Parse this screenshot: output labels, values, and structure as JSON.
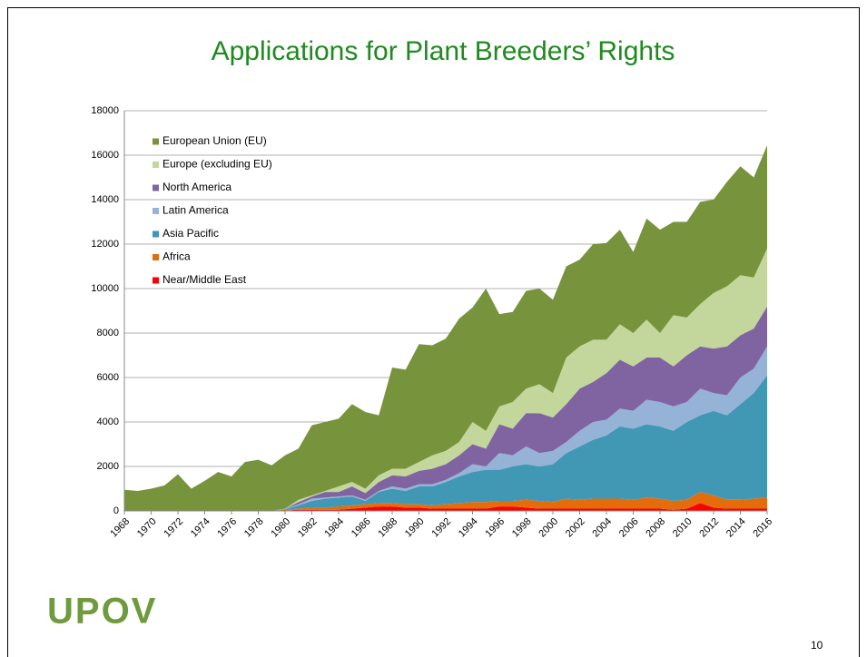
{
  "chart_data": {
    "type": "stacked_area",
    "title": "Applications for Plant Breeders’ Rights",
    "x": [
      1968,
      1969,
      1970,
      1971,
      1972,
      1973,
      1974,
      1975,
      1976,
      1977,
      1978,
      1979,
      1980,
      1981,
      1982,
      1983,
      1984,
      1985,
      1986,
      1987,
      1988,
      1989,
      1990,
      1991,
      1992,
      1993,
      1994,
      1995,
      1996,
      1997,
      1998,
      1999,
      2000,
      2001,
      2002,
      2003,
      2004,
      2005,
      2006,
      2007,
      2008,
      2009,
      2010,
      2011,
      2012,
      2013,
      2014,
      2015,
      2016
    ],
    "xlim": [
      1968,
      2016
    ],
    "xticks": [
      1968,
      1970,
      1972,
      1974,
      1976,
      1978,
      1980,
      1982,
      1984,
      1986,
      1988,
      1990,
      1992,
      1994,
      1996,
      1998,
      2000,
      2002,
      2004,
      2006,
      2008,
      2010,
      2012,
      2014,
      2016
    ],
    "ylim": [
      0,
      18000
    ],
    "yticks": [
      0,
      2000,
      4000,
      6000,
      8000,
      10000,
      12000,
      14000,
      16000,
      18000
    ],
    "grid": true,
    "legend": "upper left",
    "series": [
      {
        "name": "European Union (EU)",
        "color": "#77933c",
        "values": [
          950,
          900,
          1000,
          1150,
          1650,
          1000,
          1350,
          1750,
          1550,
          2200,
          2300,
          2050,
          2400,
          2300,
          3150,
          3100,
          3050,
          3500,
          3450,
          2700,
          4550,
          4450,
          5300,
          4950,
          5050,
          5550,
          5150,
          6400,
          4150,
          4050,
          4400,
          4300,
          4200,
          4100,
          3900,
          4300,
          4350,
          4250,
          3650,
          4550,
          4650,
          4200,
          4300,
          4600,
          4200,
          4700,
          4900,
          4500,
          4650
        ]
      },
      {
        "name": "Europe (excluding EU)",
        "color": "#c3d69b",
        "values": [
          0,
          0,
          0,
          0,
          0,
          0,
          0,
          0,
          0,
          0,
          0,
          0,
          0,
          100,
          50,
          50,
          250,
          200,
          200,
          300,
          300,
          350,
          400,
          600,
          600,
          600,
          1000,
          800,
          800,
          1200,
          1100,
          1300,
          1100,
          2100,
          1900,
          1900,
          1500,
          1600,
          1500,
          1700,
          1100,
          2300,
          1700,
          1900,
          2500,
          2700,
          2700,
          2300,
          2600
        ]
      },
      {
        "name": "North America",
        "color": "#8064a2",
        "values": [
          0,
          0,
          0,
          0,
          0,
          0,
          0,
          0,
          0,
          0,
          0,
          0,
          0,
          100,
          100,
          250,
          200,
          400,
          300,
          400,
          500,
          550,
          600,
          700,
          700,
          800,
          900,
          800,
          1300,
          1200,
          1500,
          1800,
          1500,
          1700,
          1900,
          1800,
          2100,
          2200,
          2000,
          1900,
          2000,
          1800,
          2100,
          1900,
          2000,
          2200,
          1900,
          1800,
          1800
        ]
      },
      {
        "name": "Latin America",
        "color": "#95b3d7",
        "values": [
          0,
          0,
          0,
          0,
          0,
          0,
          0,
          0,
          0,
          0,
          0,
          0,
          20,
          50,
          100,
          50,
          50,
          50,
          50,
          50,
          100,
          100,
          100,
          100,
          100,
          150,
          350,
          150,
          750,
          500,
          800,
          600,
          600,
          500,
          700,
          800,
          700,
          800,
          800,
          1100,
          1100,
          1100,
          900,
          1200,
          800,
          900,
          1200,
          1100,
          1300
        ]
      },
      {
        "name": "Asia Pacific",
        "color": "#4198b5",
        "values": [
          0,
          0,
          0,
          0,
          0,
          0,
          0,
          0,
          0,
          0,
          0,
          0,
          30,
          150,
          300,
          400,
          400,
          400,
          150,
          500,
          650,
          600,
          800,
          850,
          1000,
          1200,
          1350,
          1450,
          1400,
          1550,
          1600,
          1550,
          1700,
          2050,
          2400,
          2650,
          2850,
          3250,
          3200,
          3300,
          3250,
          3150,
          3500,
          3450,
          3800,
          3800,
          4300,
          4750,
          5500
        ]
      },
      {
        "name": "Africa",
        "color": "#e46c0a",
        "values": [
          0,
          0,
          0,
          0,
          0,
          0,
          0,
          0,
          0,
          0,
          0,
          0,
          30,
          50,
          100,
          100,
          150,
          150,
          150,
          150,
          150,
          150,
          150,
          150,
          200,
          250,
          300,
          300,
          250,
          250,
          350,
          350,
          300,
          450,
          400,
          450,
          450,
          450,
          400,
          500,
          450,
          400,
          400,
          500,
          550,
          400,
          400,
          450,
          500
        ]
      },
      {
        "name": "Near/Middle East",
        "color": "#ff0000",
        "values": [
          0,
          0,
          0,
          0,
          0,
          0,
          0,
          0,
          0,
          0,
          0,
          0,
          20,
          50,
          50,
          50,
          50,
          100,
          150,
          200,
          200,
          150,
          150,
          100,
          100,
          100,
          100,
          100,
          200,
          200,
          150,
          100,
          100,
          100,
          100,
          100,
          100,
          100,
          100,
          100,
          100,
          50,
          100,
          350,
          150,
          100,
          100,
          100,
          100
        ]
      }
    ]
  },
  "logo": "UPOV",
  "page_number": "10"
}
